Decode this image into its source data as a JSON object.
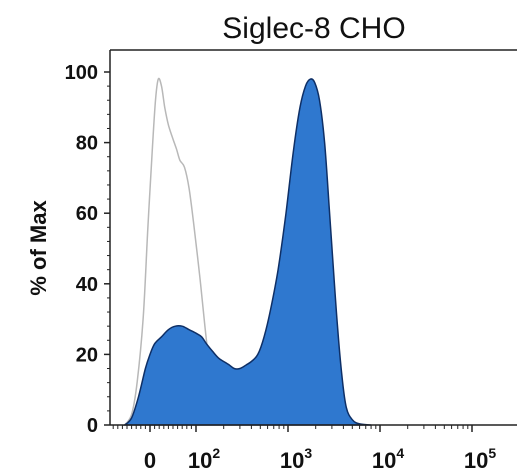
{
  "chart_data": {
    "type": "area",
    "title": "Siglec-8 CHO",
    "xlabel": "",
    "ylabel": "% of Max",
    "ylim": [
      0,
      100
    ],
    "y_ticks": [
      "0",
      "20",
      "40",
      "60",
      "80",
      "100"
    ],
    "x_ticks": [
      {
        "base": "0",
        "exp": ""
      },
      {
        "base": "10",
        "exp": "2"
      },
      {
        "base": "10",
        "exp": "3"
      },
      {
        "base": "10",
        "exp": "4"
      },
      {
        "base": "10",
        "exp": "5"
      }
    ],
    "x_scale": "biexponential",
    "grid": false,
    "series": [
      {
        "style": "outline",
        "color": "#b8b8b8",
        "points": [
          [
            -55,
            0
          ],
          [
            -40,
            3
          ],
          [
            -28,
            12
          ],
          [
            -15,
            30
          ],
          [
            -5,
            55
          ],
          [
            5,
            78
          ],
          [
            12,
            92
          ],
          [
            18,
            98
          ],
          [
            25,
            96
          ],
          [
            32,
            90
          ],
          [
            40,
            85
          ],
          [
            50,
            81
          ],
          [
            58,
            78
          ],
          [
            65,
            75
          ],
          [
            75,
            73
          ],
          [
            85,
            67
          ],
          [
            95,
            57
          ],
          [
            110,
            42
          ],
          [
            125,
            28
          ],
          [
            140,
            17
          ],
          [
            160,
            9
          ],
          [
            185,
            4
          ],
          [
            210,
            1
          ],
          [
            240,
            0
          ]
        ]
      },
      {
        "style": "filled",
        "color": "#2f78cf",
        "points": [
          [
            -55,
            0
          ],
          [
            -40,
            2
          ],
          [
            -25,
            8
          ],
          [
            -10,
            16
          ],
          [
            0,
            20
          ],
          [
            10,
            23
          ],
          [
            25,
            25
          ],
          [
            40,
            27
          ],
          [
            55,
            28
          ],
          [
            70,
            28
          ],
          [
            85,
            27
          ],
          [
            100,
            26
          ],
          [
            115,
            25
          ],
          [
            130,
            23
          ],
          [
            150,
            21
          ],
          [
            175,
            19
          ],
          [
            200,
            18
          ],
          [
            230,
            17
          ],
          [
            260,
            16
          ],
          [
            300,
            16
          ],
          [
            350,
            17
          ],
          [
            400,
            18
          ],
          [
            470,
            20
          ],
          [
            550,
            25
          ],
          [
            650,
            33
          ],
          [
            780,
            44
          ],
          [
            950,
            60
          ],
          [
            1150,
            78
          ],
          [
            1350,
            90
          ],
          [
            1550,
            96
          ],
          [
            1750,
            98
          ],
          [
            1950,
            97
          ],
          [
            2200,
            92
          ],
          [
            2500,
            80
          ],
          [
            2800,
            62
          ],
          [
            3100,
            45
          ],
          [
            3450,
            28
          ],
          [
            3850,
            14
          ],
          [
            4300,
            5
          ],
          [
            5000,
            1.5
          ],
          [
            6000,
            0.3
          ],
          [
            8000,
            0
          ]
        ]
      }
    ]
  }
}
